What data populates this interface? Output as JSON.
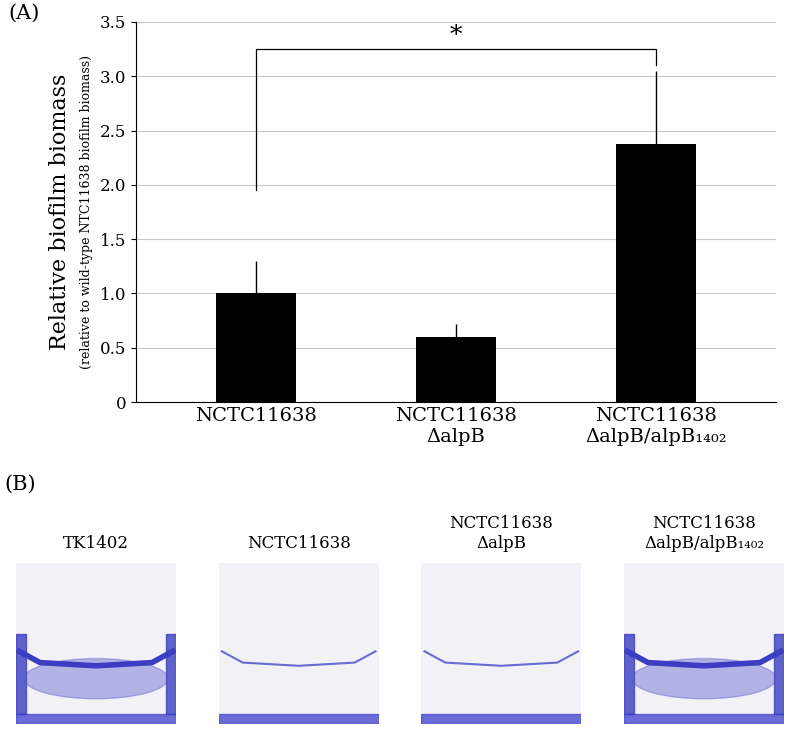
{
  "chart_data": {
    "type": "bar",
    "panel_label": "(A)",
    "y_label": "Relative biofilm biomass",
    "y_sublabel": "(relative to wild-type NTC11638 biofilm biomass)",
    "categories": [
      "NCTC11638",
      "NCTC11638\nΔalpB",
      "NCTC11638\nΔalpB/alpB₁₄₀₂"
    ],
    "values": [
      1.0,
      0.6,
      2.38
    ],
    "errors": [
      0.3,
      0.12,
      0.67
    ],
    "color": "#000000",
    "ylim": [
      0,
      3.5
    ],
    "yticks": [
      0,
      0.5,
      {
        "value": 1,
        "label": "1.0"
      },
      1.5,
      {
        "value": 2,
        "label": "2.0"
      },
      2.5,
      {
        "value": 3,
        "label": "3.0"
      },
      3.5
    ],
    "grid": true,
    "annotation": "*"
  },
  "panel_b": {
    "panel_label": "(B)",
    "images": [
      "TK1402",
      "NCTC11638",
      "NCTC11638\nΔalpB",
      "NCTC11638\nΔalpB/alpB₁₄₀₂"
    ]
  }
}
